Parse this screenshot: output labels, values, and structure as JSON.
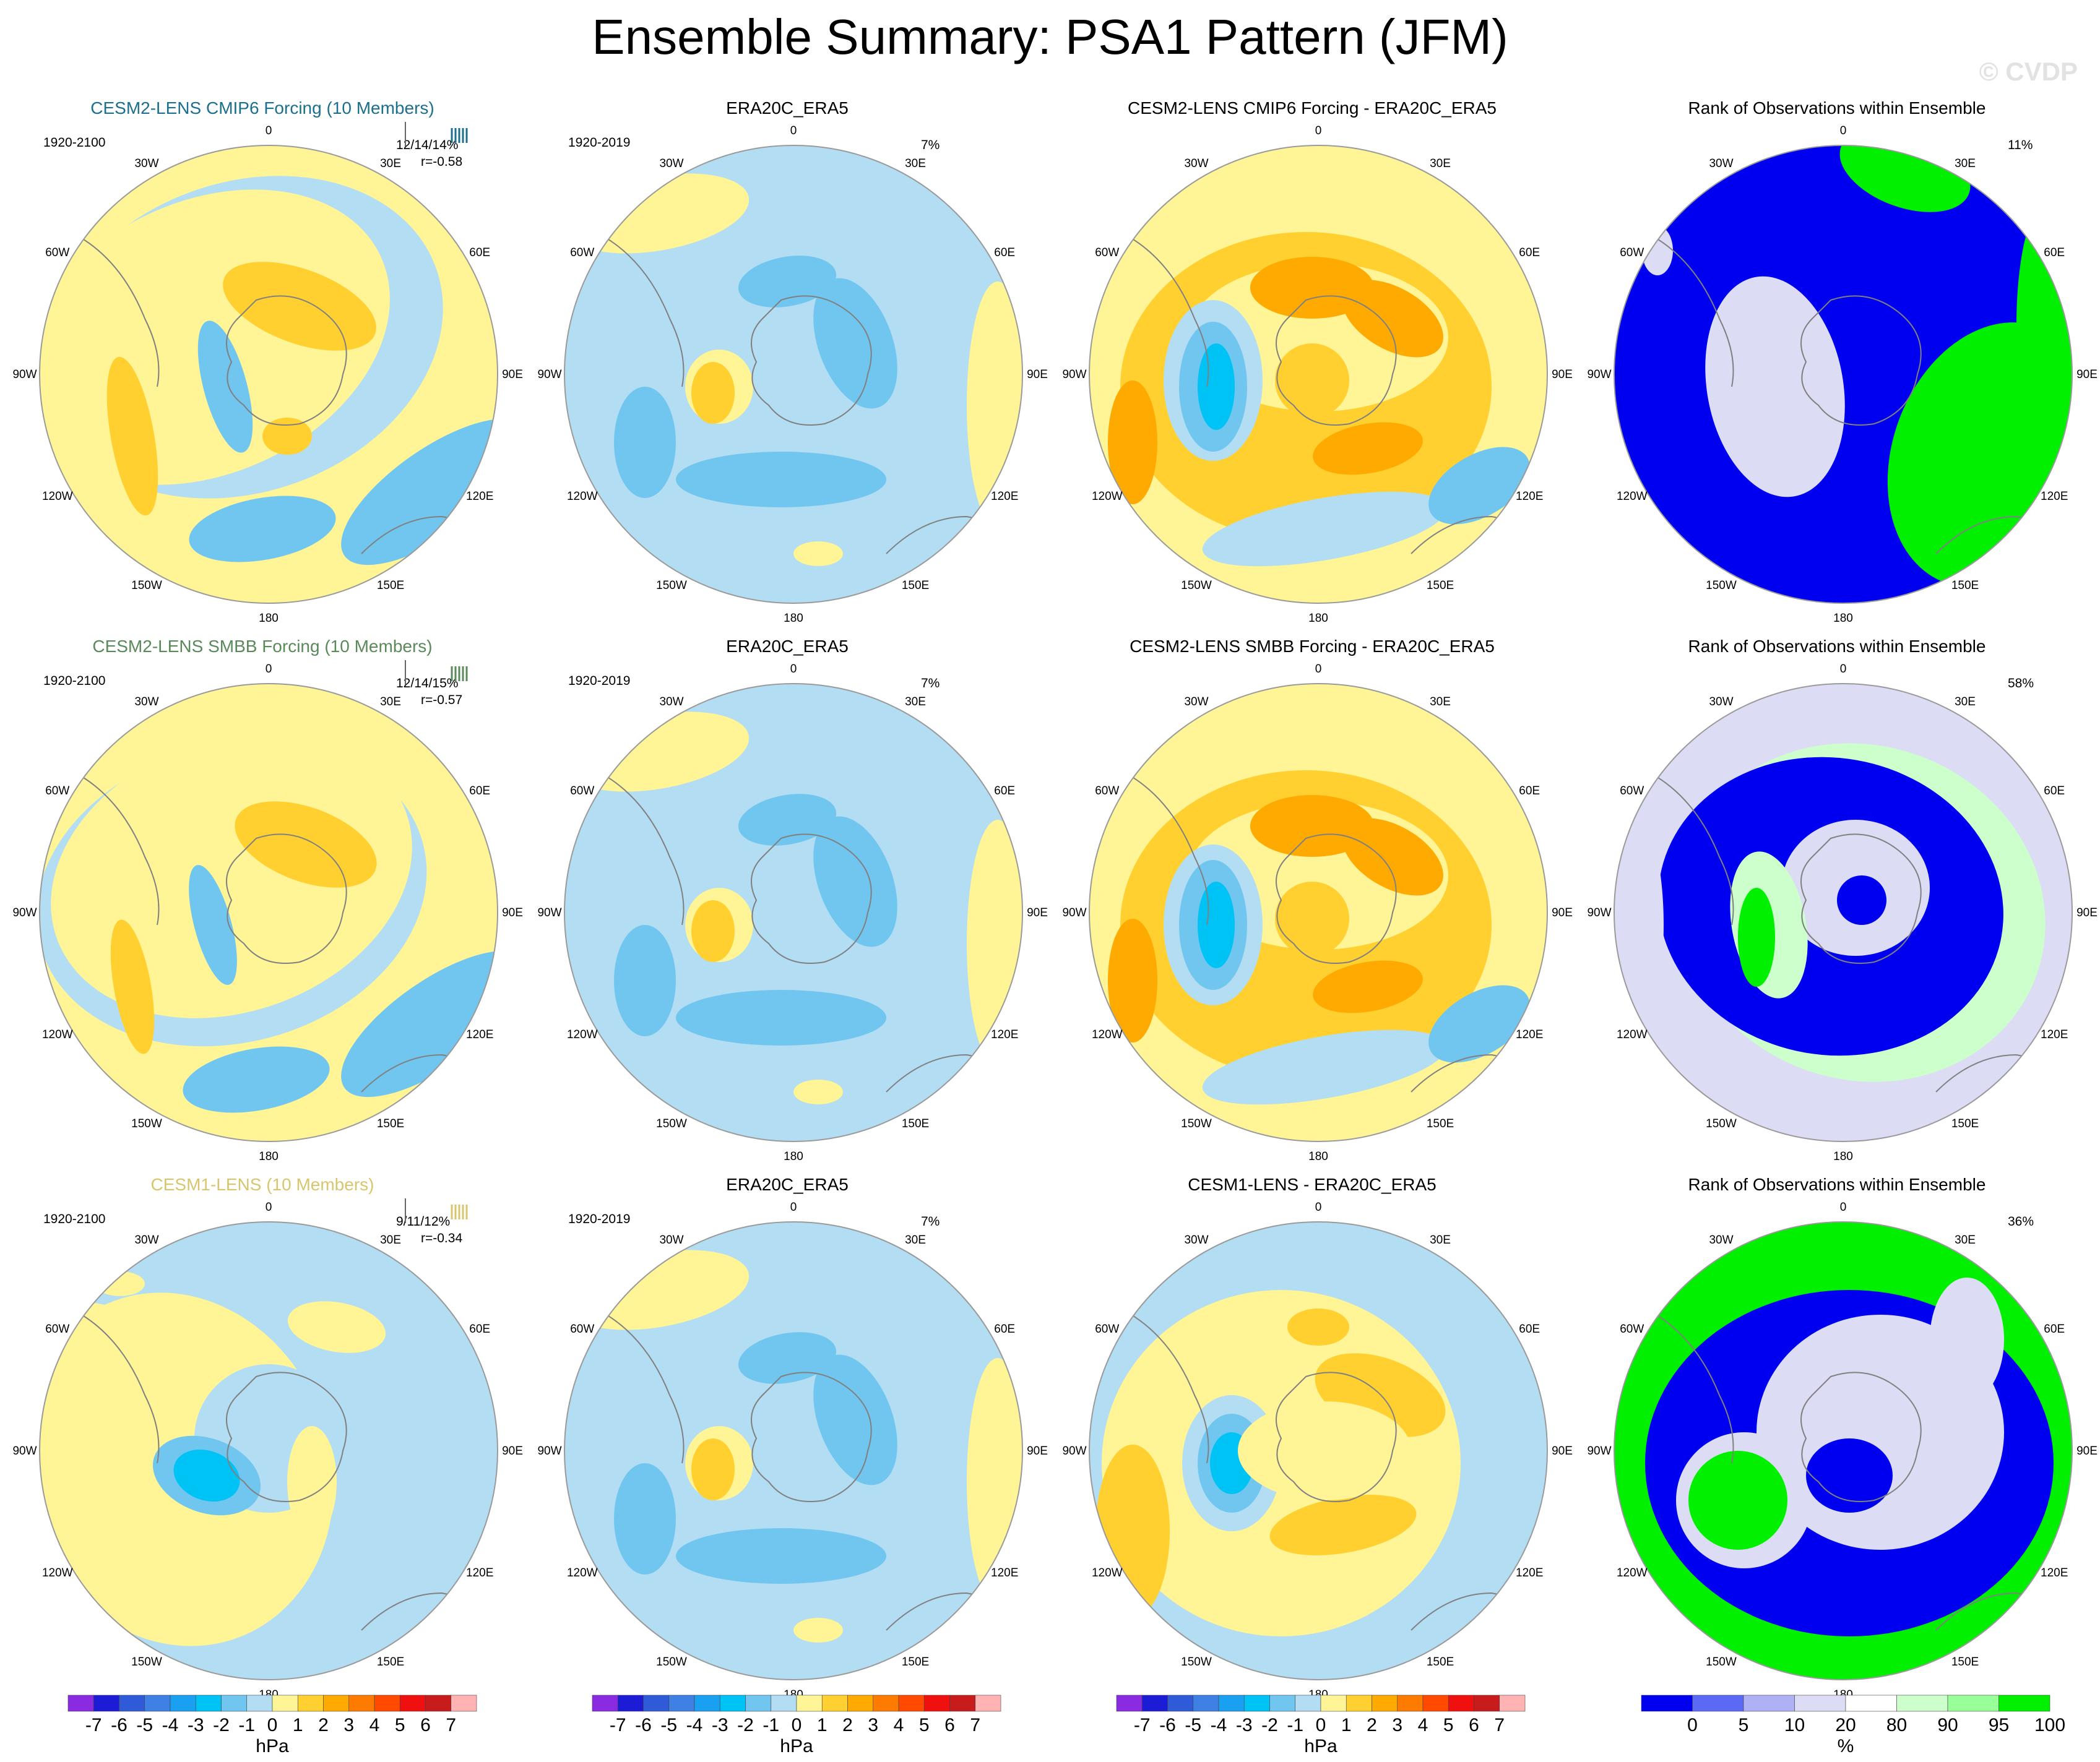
{
  "title": "Ensemble Summary: PSA1 Pattern (JFM)",
  "watermark": "© CVDP",
  "lon_labels": [
    "0",
    "30E",
    "60E",
    "90E",
    "120E",
    "150E",
    "180",
    "150W",
    "120W",
    "90W",
    "60W",
    "30W"
  ],
  "colors": {
    "neg7": "#8a2be2",
    "neg6": "#1c1cd6",
    "neg5": "#2f5bd9",
    "neg4": "#3f80e4",
    "neg3": "#1aa0f0",
    "neg2": "#00c3f5",
    "neg1": "#71c6ef",
    "neg0": "#b3ddf2",
    "pos0": "#fff496",
    "pos1": "#ffd02f",
    "pos2": "#ffaa00",
    "pos3": "#ff7b00",
    "pos4": "#ff4a00",
    "pos5": "#f01010",
    "pos6": "#c81c1c",
    "pos7": "#ffb3b3",
    "rank_blue": "#0000f0",
    "rank_green": "#00f000",
    "rank_lavender": "#dcdcf5",
    "rank_lightgreen": "#ccffcc",
    "land": "#808080"
  },
  "rows": [
    {
      "model": {
        "title": "CESM2-LENS CMIP6 Forcing (10 Members)",
        "title_color": "#1c6f8e",
        "years": "1920-2100",
        "stat1": "12/14/14%",
        "stat2": "r=-0.58"
      },
      "obs": {
        "title": "ERA20C_ERA5",
        "years": "1920-2019",
        "pct": "7%"
      },
      "diff": {
        "title": "CESM2-LENS CMIP6 Forcing - ERA20C_ERA5"
      },
      "rank": {
        "title": "Rank of Observations within Ensemble",
        "pct": "11%"
      }
    },
    {
      "model": {
        "title": "CESM2-LENS SMBB Forcing (10 Members)",
        "title_color": "#5a8a5a",
        "years": "1920-2100",
        "stat1": "12/14/15%",
        "stat2": "r=-0.57"
      },
      "obs": {
        "title": "ERA20C_ERA5",
        "years": "1920-2019",
        "pct": "7%"
      },
      "diff": {
        "title": "CESM2-LENS SMBB Forcing - ERA20C_ERA5"
      },
      "rank": {
        "title": "Rank of Observations within Ensemble",
        "pct": "58%"
      }
    },
    {
      "model": {
        "title": "CESM1-LENS (10 Members)",
        "title_color": "#d8c66e",
        "years": "1920-2100",
        "stat1": "9/11/12%",
        "stat2": "r=-0.34"
      },
      "obs": {
        "title": "ERA20C_ERA5",
        "years": "1920-2019",
        "pct": "7%"
      },
      "diff": {
        "title": "CESM1-LENS - ERA20C_ERA5"
      },
      "rank": {
        "title": "Rank of Observations within Ensemble",
        "pct": "36%"
      }
    }
  ],
  "colorbars": {
    "hpa": {
      "unit": "hPa",
      "ticks": [
        "-7",
        "-6",
        "-5",
        "-4",
        "-3",
        "-2",
        "-1",
        "0",
        "1",
        "2",
        "3",
        "4",
        "5",
        "6",
        "7"
      ],
      "colors": [
        "#8a2be2",
        "#1c1cd6",
        "#2f5bd9",
        "#3f80e4",
        "#1aa0f0",
        "#00c3f5",
        "#71c6ef",
        "#b3ddf2",
        "#fff496",
        "#ffd02f",
        "#ffaa00",
        "#ff7b00",
        "#ff4a00",
        "#f01010",
        "#c81c1c",
        "#ffb3b3"
      ]
    },
    "rank": {
      "unit": "%",
      "ticks": [
        "0",
        "5",
        "10",
        "20",
        "80",
        "90",
        "95",
        "100"
      ],
      "colors": [
        "#0000f0",
        "#5a6af5",
        "#b0b0f5",
        "#dcdcf5",
        "#ffffff",
        "#ccffcc",
        "#99ff99",
        "#00f000"
      ]
    }
  }
}
